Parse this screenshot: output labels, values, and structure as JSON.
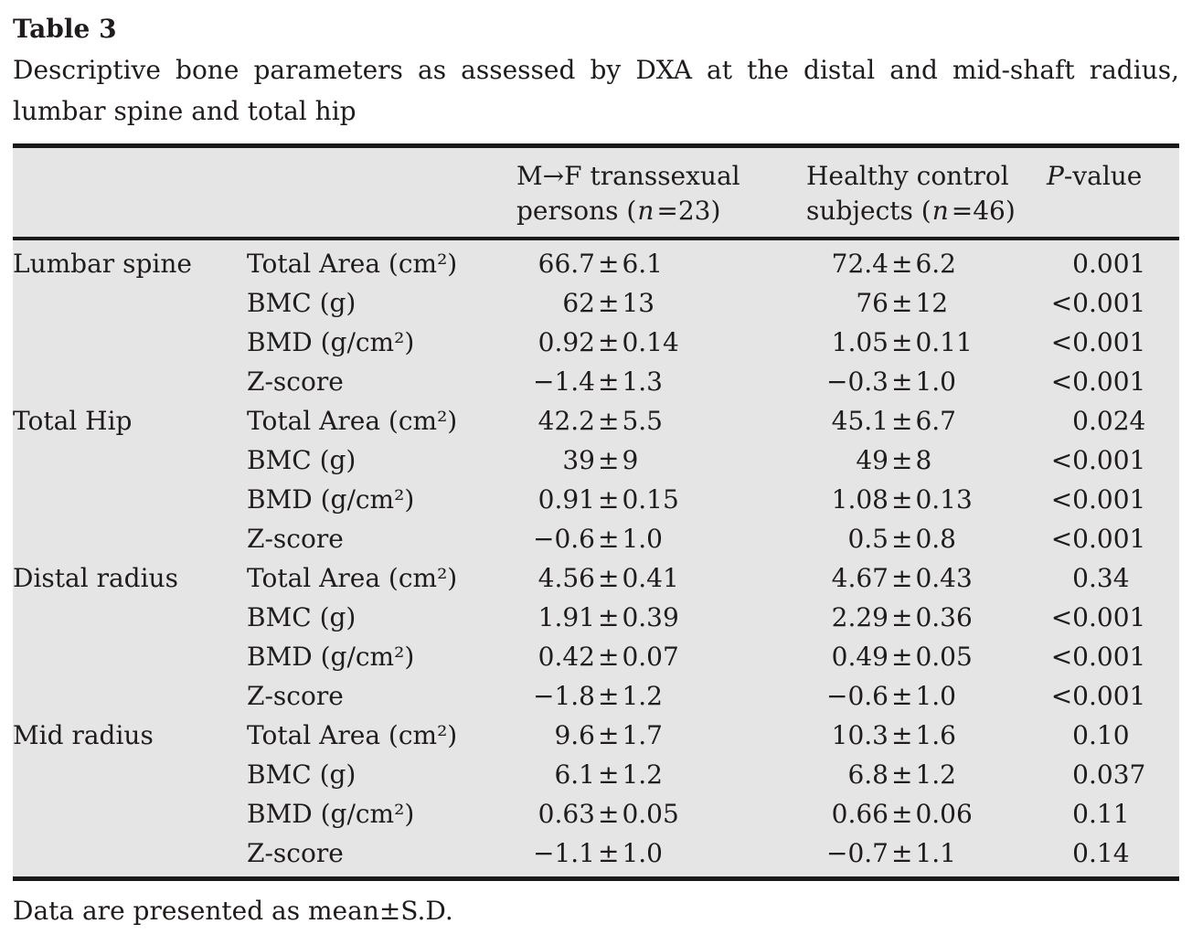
{
  "page": {
    "table_label": "Table 3",
    "caption": "Descriptive bone parameters as assessed by DXA at the distal and mid-shaft radius, lumbar spine and total hip",
    "footnote": "Data are presented as mean±S.D."
  },
  "table": {
    "header": {
      "region_col": "",
      "parameter_col": "",
      "mtf": {
        "line1": "M→F transsexual",
        "line2_pre": "persons (",
        "n": "n",
        "line2_post": "=23)"
      },
      "control": {
        "line1": "Healthy control",
        "line2_pre": "subjects (",
        "n": "n",
        "line2_post": "=46)"
      },
      "pvalue": {
        "italic": "P",
        "rest": "-value"
      }
    },
    "rows": [
      {
        "region": "Lumbar spine",
        "parameter": "Total Area (cm²)",
        "mtf": "66.7±6.1",
        "control": "72.4±6.2",
        "p": "0.001"
      },
      {
        "region": "",
        "parameter": "BMC (g)",
        "mtf": "62±13",
        "control": "76±12",
        "p": "<0.001"
      },
      {
        "region": "",
        "parameter": "BMD (g/cm²)",
        "mtf": "0.92±0.14",
        "control": "1.05±0.11",
        "p": "<0.001"
      },
      {
        "region": "",
        "parameter": "Z-score",
        "mtf": "−1.4±1.3",
        "control": "−0.3±1.0",
        "p": "<0.001"
      },
      {
        "region": "Total Hip",
        "parameter": "Total Area (cm²)",
        "mtf": "42.2±5.5",
        "control": "45.1±6.7",
        "p": "0.024"
      },
      {
        "region": "",
        "parameter": "BMC (g)",
        "mtf": "39±9",
        "control": "49±8",
        "p": "<0.001"
      },
      {
        "region": "",
        "parameter": "BMD (g/cm²)",
        "mtf": "0.91±0.15",
        "control": "1.08±0.13",
        "p": "<0.001"
      },
      {
        "region": "",
        "parameter": "Z-score",
        "mtf": "−0.6±1.0",
        "control": "0.5±0.8",
        "p": "<0.001"
      },
      {
        "region": "Distal radius",
        "parameter": "Total Area (cm²)",
        "mtf": "4.56±0.41",
        "control": "4.67±0.43",
        "p": "0.34"
      },
      {
        "region": "",
        "parameter": "BMC (g)",
        "mtf": "1.91±0.39",
        "control": "2.29±0.36",
        "p": "<0.001"
      },
      {
        "region": "",
        "parameter": "BMD (g/cm²)",
        "mtf": "0.42±0.07",
        "control": "0.49±0.05",
        "p": "<0.001"
      },
      {
        "region": "",
        "parameter": "Z-score",
        "mtf": "−1.8±1.2",
        "control": "−0.6±1.0",
        "p": "<0.001"
      },
      {
        "region": "Mid radius",
        "parameter": "Total Area (cm²)",
        "mtf": "9.6±1.7",
        "control": "10.3±1.6",
        "p": "0.10"
      },
      {
        "region": "",
        "parameter": "BMC (g)",
        "mtf": "6.1±1.2",
        "control": "6.8±1.2",
        "p": "0.037"
      },
      {
        "region": "",
        "parameter": "BMD (g/cm²)",
        "mtf": "0.63±0.05",
        "control": "0.66±0.06",
        "p": "0.11"
      },
      {
        "region": "",
        "parameter": "Z-score",
        "mtf": "−1.1±1.0",
        "control": "−0.7±1.1",
        "p": "0.14"
      }
    ]
  },
  "colors": {
    "page_bg": "#ffffff",
    "table_bg": "#e5e5e6",
    "rule": "#1a1a1a",
    "text": "#1f1c1b"
  }
}
